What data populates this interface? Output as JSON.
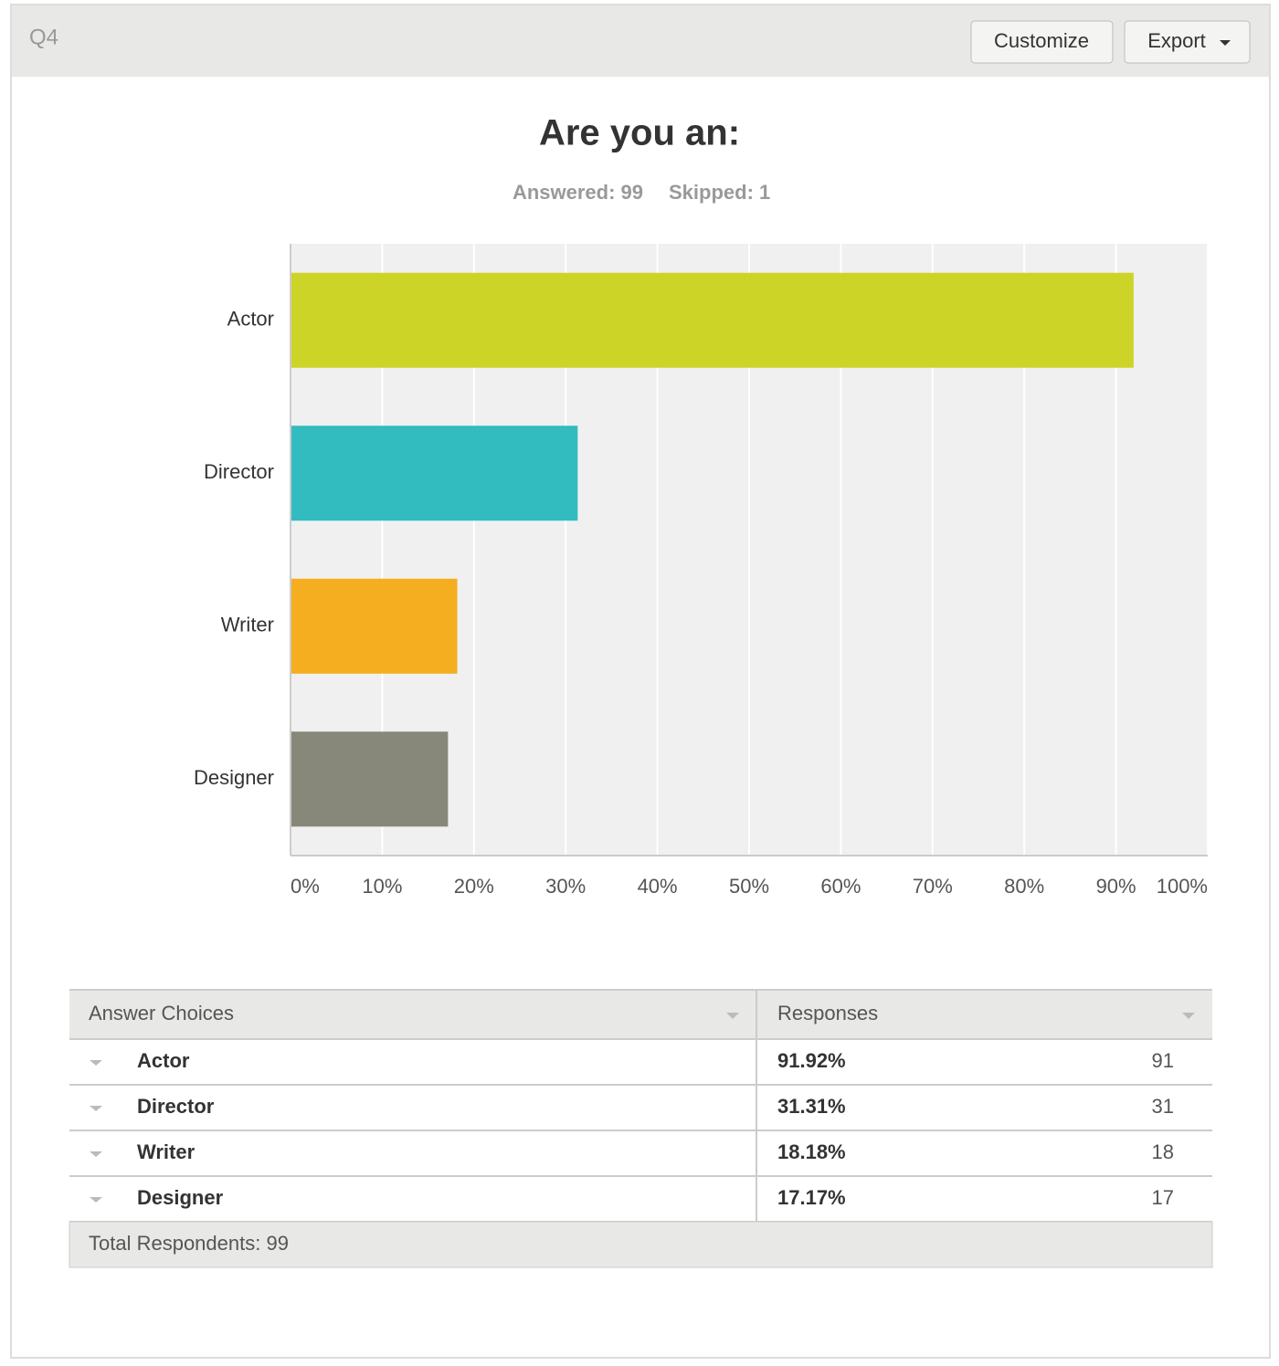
{
  "header": {
    "label": "Q4",
    "buttons": [
      "Customize",
      "Export"
    ]
  },
  "chart_data": {
    "type": "hbar",
    "title": "Are you an:",
    "answered": "Answered: 99",
    "skipped": "Skipped: 1",
    "categories": [
      "Actor",
      "Director",
      "Writer",
      "Designer"
    ],
    "values": [
      91.92,
      31.31,
      18.18,
      17.17
    ],
    "colors": [
      "#cdd428",
      "#32bcbf",
      "#f5ae1f",
      "#88887a"
    ],
    "xlim": [
      0,
      100
    ],
    "xticks": [
      {
        "value": 0,
        "label": "0%"
      },
      {
        "value": 10,
        "label": "10%"
      },
      {
        "value": 20,
        "label": "20%"
      },
      {
        "value": 30,
        "label": "30%"
      },
      {
        "value": 40,
        "label": "40%"
      },
      {
        "value": 50,
        "label": "50%"
      },
      {
        "value": 60,
        "label": "60%"
      },
      {
        "value": 70,
        "label": "70%"
      },
      {
        "value": 80,
        "label": "80%"
      },
      {
        "value": 90,
        "label": "90%"
      },
      {
        "value": 100,
        "label": "100%"
      }
    ],
    "grid": true
  },
  "table": {
    "columns": [
      "Answer Choices",
      "Responses"
    ],
    "rows": [
      [
        "Actor",
        "91.92%",
        91
      ],
      [
        "Director",
        "31.31%",
        31
      ],
      [
        "Writer",
        "18.18%",
        18
      ],
      [
        "Designer",
        "17.17%",
        17
      ]
    ],
    "footer": "Total Respondents: 99"
  }
}
